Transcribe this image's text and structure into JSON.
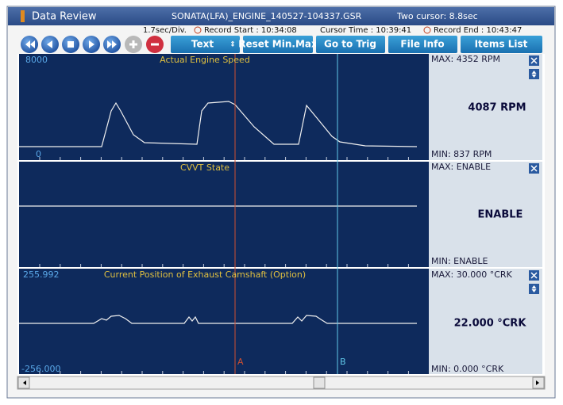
{
  "window": {
    "title": "Data Review",
    "file": "SONATA(LFA)_ENGINE_140527-104337.GSR",
    "cursor_info": "Two cursor: 8.8sec"
  },
  "info_bar": {
    "division": "1.7sec/Div.",
    "record_start": "Record Start : 10:34:08",
    "cursor_time": "Cursor Time : 10:39:41",
    "record_end": "Record End : 10:43:47"
  },
  "toolbar": {
    "buttons": [
      "Text",
      "Reset Min.Max",
      "Go to Trig",
      "File Info",
      "Items List"
    ]
  },
  "panels": [
    {
      "title": "Actual Engine Speed",
      "axis_max": "8000",
      "axis_min": "0",
      "max": "MAX:  4352 RPM",
      "current": "4087 RPM",
      "min": "MIN:   837 RPM"
    },
    {
      "title": "CVVT State",
      "max": "MAX: ENABLE",
      "current": "ENABLE",
      "min": "MIN: ENABLE"
    },
    {
      "title": "Current Position of Exhaust Camshaft (Option)",
      "axis_max": "255.992",
      "axis_min": "-256.000",
      "max": "MAX: 30.000 °CRK",
      "current": "22.000 °CRK",
      "min": "MIN: 0.000 °CRK"
    }
  ],
  "cursors": {
    "a": "A",
    "b": "B"
  }
}
